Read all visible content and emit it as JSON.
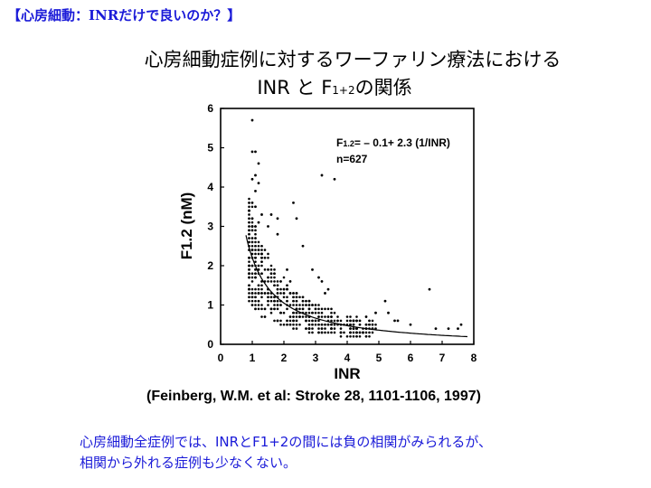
{
  "slide": {
    "heading": "【心房細動：INRだけで良いのか？】",
    "title_line1": "心房細動症例に対するワーファリン療法における",
    "title_line2_a": "INR と F",
    "title_line2_sub": "1+2",
    "title_line2_b": "の関係",
    "citation": "(Feinberg, W.M. et al: Stroke 28, 1101-1106, 1997)",
    "conclusion_line1": "心房細動全症例では、INRとF1+2の間には負の相関がみられるが、",
    "conclusion_line2": "相関から外れる症例も少なくない。"
  },
  "colors": {
    "heading": "#1a1ad8",
    "conclusion": "#1a1ad8",
    "points": "#000000",
    "curve": "#000000"
  },
  "chart_data": {
    "type": "scatter",
    "xlabel": "INR",
    "ylabel": "F1.2 (nM)",
    "xlim": [
      0,
      8
    ],
    "ylim": [
      0,
      6
    ],
    "x_ticks": [
      0,
      1,
      2,
      3,
      4,
      5,
      6,
      7,
      8
    ],
    "y_ticks": [
      0,
      1,
      2,
      3,
      4,
      5,
      6
    ],
    "grid": false,
    "annotation_equation_prefix": "F",
    "annotation_equation_sub": "1.2",
    "annotation_equation_rest": "= – 0.1+ 2.3 (1/INR)",
    "annotation_n": "n=627",
    "fit": {
      "formula": "y = -0.1 + 2.3/x",
      "x_range": [
        0.8,
        7.8
      ]
    },
    "series": [
      {
        "x": [
          1.0,
          1.0,
          1.1,
          1.1,
          1.2,
          1.2,
          1.0,
          1.1,
          1.0,
          1.1,
          1.0,
          1.2,
          1.3,
          1.5,
          1.8,
          3.2,
          3.6,
          2.3,
          2.4,
          1.6,
          1.8,
          2.6,
          6.6,
          5.2,
          7.6,
          5.3,
          5.6,
          6.0,
          7.2,
          7.5,
          4.6,
          4.8,
          5.5,
          6.8,
          4.2,
          4.9,
          3.2,
          3.1,
          2.9,
          3.4,
          2.8,
          3.3,
          2.2,
          2.1,
          0.9,
          0.9
        ],
        "y": [
          5.7,
          4.9,
          4.9,
          4.3,
          4.6,
          4.1,
          4.2,
          3.9,
          3.6,
          3.5,
          3.2,
          3.1,
          3.3,
          3.0,
          3.2,
          4.3,
          4.2,
          3.6,
          3.2,
          3.3,
          2.8,
          2.5,
          1.4,
          1.1,
          0.5,
          0.8,
          0.6,
          0.5,
          0.4,
          0.4,
          0.7,
          0.5,
          0.6,
          0.4,
          0.6,
          0.8,
          1.6,
          1.7,
          1.9,
          1.4,
          1.1,
          1.3,
          1.6,
          1.9,
          2.2,
          1.8
        ]
      }
    ]
  }
}
